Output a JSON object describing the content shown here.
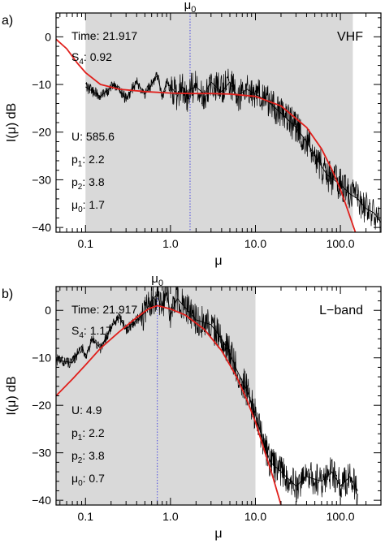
{
  "colors": {
    "shade": "#d9d9d9",
    "model": "#e0201c",
    "data": "#000000",
    "mu0_line": "#4a4ae0",
    "axis": "#000000"
  },
  "chart_data": [
    {
      "type": "line",
      "panel_label": "a)",
      "band_label": "VHF",
      "mu0_label": "μ",
      "mu0_sub": "0",
      "xlabel": "μ",
      "ylabel": "I(μ) dB",
      "xscale": "log",
      "xlim": [
        0.045,
        300
      ],
      "ylim": [
        -41,
        5
      ],
      "xticks": [
        0.1,
        1.0,
        10.0,
        100.0
      ],
      "xtick_labels": [
        "0.1",
        "1.0",
        "10.0",
        "100.0"
      ],
      "yticks": [
        0,
        -10,
        -20,
        -30,
        -40
      ],
      "ytick_labels": [
        "0",
        "−10",
        "−20",
        "−30",
        "−40"
      ],
      "shaded_range": [
        0.1,
        140
      ],
      "annotations": [
        {
          "label": "Time",
          "sub": "",
          "value": "21.917"
        },
        {
          "label": "S",
          "sub": "4",
          "value": "0.92"
        },
        {
          "label": "U",
          "sub": "",
          "value": "585.6"
        },
        {
          "label": "p",
          "sub": "1",
          "value": "2.2"
        },
        {
          "label": "p",
          "sub": "2",
          "value": "3.8"
        },
        {
          "label": "μ",
          "sub": "0",
          "value": "1.7"
        }
      ],
      "mu0": 1.7,
      "series": [
        {
          "role": "model",
          "x": [
            0.045,
            0.06,
            0.08,
            0.1,
            0.15,
            0.25,
            0.5,
            1.0,
            1.7,
            3,
            5,
            10,
            20,
            40,
            60,
            80,
            100,
            120,
            150
          ],
          "y": [
            -0.5,
            -2.5,
            -5.5,
            -7.5,
            -10,
            -11,
            -11.5,
            -11.8,
            -11.9,
            -11.9,
            -12,
            -12.5,
            -14.5,
            -19,
            -23.5,
            -28,
            -32,
            -36,
            -41
          ]
        },
        {
          "role": "data",
          "x": [
            0.1,
            0.15,
            0.22,
            0.3,
            0.4,
            0.5,
            0.6,
            0.7,
            0.8,
            0.9,
            1.0,
            1.2,
            1.4,
            1.6,
            1.7,
            2.0,
            2.5,
            3.0,
            4.0,
            5.0,
            6.0,
            8.0,
            10,
            15,
            20,
            30,
            40,
            50,
            70,
            100,
            130,
            160,
            200,
            250,
            300
          ],
          "y": [
            -10.5,
            -12.5,
            -10,
            -13,
            -9.5,
            -12,
            -10,
            -8,
            -12.5,
            -9.5,
            -10.5,
            -12,
            -10.5,
            -12.5,
            -11,
            -10.5,
            -12,
            -9.5,
            -11.5,
            -9.5,
            -12.5,
            -11,
            -12,
            -14,
            -16,
            -19,
            -22,
            -25,
            -29,
            -31,
            -33,
            -34,
            -36,
            -37,
            -39
          ]
        }
      ]
    },
    {
      "type": "line",
      "panel_label": "b)",
      "band_label": "L−band",
      "mu0_label": "μ",
      "mu0_sub": "0",
      "xlabel": "μ",
      "ylabel": "I(μ) dB",
      "xscale": "log",
      "xlim": [
        0.045,
        300
      ],
      "ylim": [
        -41,
        5
      ],
      "xticks": [
        0.1,
        1.0,
        10.0,
        100.0
      ],
      "xtick_labels": [
        "0.1",
        "1.0",
        "10.0",
        "100.0"
      ],
      "yticks": [
        0,
        -10,
        -20,
        -30,
        -40
      ],
      "ytick_labels": [
        "0",
        "−10",
        "−20",
        "−30",
        "−40"
      ],
      "shaded_range": [
        0.045,
        10
      ],
      "annotations": [
        {
          "label": "Time",
          "sub": "",
          "value": "21.917"
        },
        {
          "label": "S",
          "sub": "4",
          "value": "1.17"
        },
        {
          "label": "U",
          "sub": "",
          "value": "4.9"
        },
        {
          "label": "p",
          "sub": "1",
          "value": "2.2"
        },
        {
          "label": "p",
          "sub": "2",
          "value": "3.8"
        },
        {
          "label": "μ",
          "sub": "0",
          "value": "0.7"
        }
      ],
      "mu0": 0.7,
      "series": [
        {
          "role": "model",
          "x": [
            0.045,
            0.07,
            0.1,
            0.15,
            0.25,
            0.4,
            0.55,
            0.7,
            1.0,
            1.5,
            2.5,
            4,
            6,
            8,
            10,
            13,
            16,
            20
          ],
          "y": [
            -18,
            -14.5,
            -11.5,
            -8,
            -4.5,
            -1.5,
            0.3,
            1,
            0.3,
            -1,
            -4,
            -8.5,
            -14,
            -19,
            -23.5,
            -30,
            -35,
            -41
          ]
        },
        {
          "role": "data",
          "x": [
            0.045,
            0.07,
            0.09,
            0.1,
            0.12,
            0.15,
            0.2,
            0.25,
            0.3,
            0.4,
            0.5,
            0.6,
            0.7,
            0.8,
            0.9,
            1.0,
            1.2,
            1.5,
            2.0,
            3.0,
            4.0,
            5.0,
            6.0,
            8.0,
            10,
            12,
            15,
            20,
            30,
            40,
            60,
            80,
            100,
            130,
            160
          ],
          "y": [
            -10.5,
            -11,
            -7.5,
            -10,
            -6,
            -8,
            -3.5,
            -1.5,
            -4,
            -2,
            -0.5,
            2,
            3.5,
            0,
            4,
            -1,
            2.5,
            0.5,
            -2,
            -3,
            -6,
            -9,
            -12.5,
            -17,
            -22,
            -27,
            -32,
            -34,
            -37,
            -35,
            -36,
            -34,
            -37,
            -35,
            -38
          ]
        }
      ]
    }
  ]
}
